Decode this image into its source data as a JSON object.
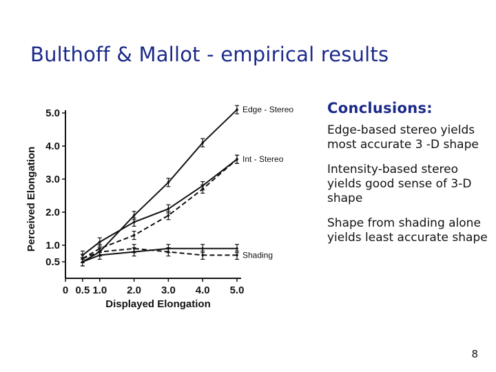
{
  "slide": {
    "title": "Bulthoff & Mallot - empirical results",
    "page_number": "8"
  },
  "conclusions": {
    "heading": "Conclusions:",
    "items": [
      "Edge-based stereo yields most accurate 3 -D shape",
      "Intensity-based stereo yields good sense of 3-D shape",
      "Shape from shading alone yields least accurate shape"
    ]
  },
  "chart_data": {
    "type": "line",
    "xlabel": "Displayed Elongation",
    "ylabel": "Perceived Elongation",
    "xlim": [
      0,
      5.0
    ],
    "ylim": [
      0,
      5.0
    ],
    "x_ticks": [
      "0",
      "0.5",
      "1.0",
      "2.0",
      "3.0",
      "4.0",
      "5.0"
    ],
    "y_ticks": [
      "0.5",
      "1.0",
      "2.0",
      "3.0",
      "4.0",
      "5.0"
    ],
    "grid": false,
    "series": [
      {
        "name": "Edge - Stereo",
        "style": "solid",
        "x": [
          0.5,
          1.0,
          2.0,
          3.0,
          4.0,
          5.0
        ],
        "y": [
          0.5,
          0.8,
          1.9,
          2.9,
          4.1,
          5.1
        ]
      },
      {
        "name": "",
        "style": "solid",
        "x": [
          0.5,
          1.0,
          2.0,
          3.0,
          4.0,
          5.0
        ],
        "y": [
          0.7,
          1.1,
          1.7,
          2.1,
          2.8,
          3.6
        ]
      },
      {
        "name": "Int - Stereo",
        "style": "dashed",
        "x": [
          0.5,
          1.0,
          2.0,
          3.0,
          4.0,
          5.0
        ],
        "y": [
          0.6,
          0.9,
          1.3,
          1.9,
          2.7,
          3.6
        ]
      },
      {
        "name": "",
        "style": "solid",
        "x": [
          0.5,
          1.0,
          2.0,
          3.0,
          4.0,
          5.0
        ],
        "y": [
          0.5,
          0.7,
          0.8,
          0.9,
          0.9,
          0.9
        ]
      },
      {
        "name": "Shading",
        "style": "dashed",
        "x": [
          0.5,
          1.0,
          2.0,
          3.0,
          4.0,
          5.0
        ],
        "y": [
          0.6,
          0.8,
          0.9,
          0.8,
          0.7,
          0.7
        ]
      }
    ]
  }
}
